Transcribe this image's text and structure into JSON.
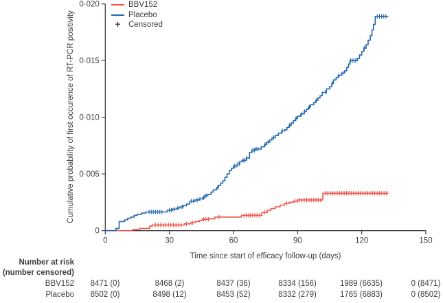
{
  "colors": {
    "bbv152": "#f0544c",
    "placebo": "#2267ae",
    "axis": "#404040",
    "text": "#3c3c3c"
  },
  "legend": {
    "items": [
      {
        "label": "BBV152"
      },
      {
        "label": "Placebo"
      },
      {
        "label": "Censored"
      }
    ],
    "censored_symbol": "+"
  },
  "chart_data": {
    "type": "line",
    "subtype": "kaplan-meier-step",
    "title": "",
    "xlabel": "Time since start of efficacy follow-up (days)",
    "ylabel": "Cumulative probability of first occurence of RT-PCR positivity",
    "xlim": [
      0,
      150
    ],
    "ylim": [
      0,
      0.02
    ],
    "grid": false,
    "legend_position": "top-left-inside",
    "x_ticks": [
      {
        "v": 0,
        "label": "0"
      },
      {
        "v": 30,
        "label": "30"
      },
      {
        "v": 60,
        "label": "60"
      },
      {
        "v": 90,
        "label": "90"
      },
      {
        "v": 120,
        "label": "120"
      },
      {
        "v": 150,
        "label": "150"
      }
    ],
    "y_ticks": [
      {
        "v": 0,
        "label": "0"
      },
      {
        "v": 0.005,
        "label": "0·005"
      },
      {
        "v": 0.01,
        "label": "0·010"
      },
      {
        "v": 0.015,
        "label": "0·015"
      },
      {
        "v": 0.02,
        "label": "0·020"
      }
    ],
    "series": [
      {
        "name": "BBV152",
        "color": "#f0544c",
        "step_points": [
          [
            0,
            0
          ],
          [
            12.8,
            0.0001
          ],
          [
            16,
            0.0002
          ],
          [
            20.8,
            0.0004
          ],
          [
            22,
            0.0005
          ],
          [
            37,
            0.0006
          ],
          [
            40,
            0.0007
          ],
          [
            42,
            0.0008
          ],
          [
            44,
            0.0009
          ],
          [
            45.3,
            0.001
          ],
          [
            48.5,
            0.00105
          ],
          [
            51.3,
            0.0012
          ],
          [
            63.8,
            0.00135
          ],
          [
            73.3,
            0.0016
          ],
          [
            75.8,
            0.0018
          ],
          [
            77.5,
            0.00195
          ],
          [
            79.5,
            0.0021
          ],
          [
            81.8,
            0.00225
          ],
          [
            83.8,
            0.0024
          ],
          [
            86,
            0.0025
          ],
          [
            88,
            0.0026
          ],
          [
            90,
            0.0027
          ],
          [
            101.8,
            0.0033
          ],
          [
            132.5,
            0.0033
          ]
        ],
        "censor_days": [
          23.5,
          24.7,
          25.9,
          27.1,
          28.3,
          29.5,
          30.7,
          31.9,
          33.1,
          34.3,
          35.5,
          38,
          40.8,
          46,
          47,
          48.2,
          53.2,
          65,
          66,
          67,
          68,
          69,
          70,
          71,
          72.2,
          74.5,
          84.8,
          88.7,
          89.8,
          90.9,
          92,
          93.1,
          94.2,
          95.3,
          96.4,
          97.5,
          98.6,
          99.7,
          100.8,
          103,
          104.1,
          105.2,
          106.3,
          107.4,
          108.5,
          109.6,
          110.7,
          111.8,
          112.9,
          114,
          115.1,
          116.2,
          117.3,
          118.4,
          119.5,
          120.6,
          121.7,
          122.8,
          123.9,
          125,
          126.1,
          127.2,
          128.3,
          129.4,
          130.5,
          131.6
        ]
      },
      {
        "name": "Placebo",
        "color": "#2267ae",
        "step_points": [
          [
            0,
            0
          ],
          [
            5,
            0.0002
          ],
          [
            6.5,
            0.0008
          ],
          [
            9,
            0.00095
          ],
          [
            10.5,
            0.0011
          ],
          [
            12,
            0.0012
          ],
          [
            13.5,
            0.00135
          ],
          [
            15,
            0.00145
          ],
          [
            17,
            0.00155
          ],
          [
            19,
            0.00165
          ],
          [
            29,
            0.0018
          ],
          [
            31.5,
            0.0019
          ],
          [
            33.5,
            0.002
          ],
          [
            35,
            0.0021
          ],
          [
            36.5,
            0.0022
          ],
          [
            38,
            0.00235
          ],
          [
            39.5,
            0.0026
          ],
          [
            42,
            0.0027
          ],
          [
            44,
            0.0028
          ],
          [
            45.5,
            0.0029
          ],
          [
            46.5,
            0.0031
          ],
          [
            48,
            0.0032
          ],
          [
            49.5,
            0.0034
          ],
          [
            50.5,
            0.0036
          ],
          [
            52,
            0.0038
          ],
          [
            53,
            0.004
          ],
          [
            54,
            0.0042
          ],
          [
            55,
            0.0044
          ],
          [
            56,
            0.0047
          ],
          [
            57,
            0.005
          ],
          [
            58,
            0.0053
          ],
          [
            59,
            0.0055
          ],
          [
            60,
            0.0057
          ],
          [
            62,
            0.0059
          ],
          [
            63,
            0.0061
          ],
          [
            64,
            0.0062
          ],
          [
            66,
            0.0064
          ],
          [
            67.5,
            0.0069
          ],
          [
            68.5,
            0.0071
          ],
          [
            70,
            0.0072
          ],
          [
            73,
            0.0074
          ],
          [
            74.5,
            0.0076
          ],
          [
            75.5,
            0.0078
          ],
          [
            77,
            0.008
          ],
          [
            78,
            0.0082
          ],
          [
            79.5,
            0.0084
          ],
          [
            81,
            0.0086
          ],
          [
            82.5,
            0.0088
          ],
          [
            84,
            0.0089
          ],
          [
            85,
            0.0091
          ],
          [
            86,
            0.0093
          ],
          [
            87,
            0.0095
          ],
          [
            88,
            0.0097
          ],
          [
            89,
            0.0099
          ],
          [
            90,
            0.0101
          ],
          [
            91.5,
            0.0103
          ],
          [
            93,
            0.0105
          ],
          [
            94,
            0.0107
          ],
          [
            95,
            0.0109
          ],
          [
            96,
            0.0111
          ],
          [
            97.5,
            0.0113
          ],
          [
            98.5,
            0.0115
          ],
          [
            99.5,
            0.0117
          ],
          [
            100.5,
            0.0119
          ],
          [
            101.5,
            0.0122
          ],
          [
            103.5,
            0.0125
          ],
          [
            105,
            0.0127
          ],
          [
            106,
            0.013
          ],
          [
            106.8,
            0.0133
          ],
          [
            108,
            0.0135
          ],
          [
            109,
            0.0137
          ],
          [
            110.5,
            0.0139
          ],
          [
            112,
            0.0141
          ],
          [
            113,
            0.0144
          ],
          [
            113.8,
            0.0147
          ],
          [
            114.5,
            0.015
          ],
          [
            118,
            0.0152
          ],
          [
            119,
            0.0155
          ],
          [
            120,
            0.0158
          ],
          [
            121,
            0.0161
          ],
          [
            122,
            0.0164
          ],
          [
            123,
            0.0168
          ],
          [
            124,
            0.0172
          ],
          [
            124.8,
            0.0177
          ],
          [
            125.5,
            0.0182
          ],
          [
            126.3,
            0.0189
          ],
          [
            132.5,
            0.0189
          ]
        ],
        "censor_days": [
          20.5,
          21.5,
          22.5,
          23.5,
          24.5,
          25.5,
          26.5,
          30,
          31,
          32.3,
          34,
          36,
          40.3,
          41.3,
          43,
          44.3,
          46,
          47.2,
          52.6,
          60.4,
          61.2,
          62,
          62.8,
          64.5,
          65.3,
          66.2,
          69,
          69.8,
          70.6,
          71.5,
          74.8,
          76.2,
          78.8,
          82.8,
          86.3,
          89.3,
          91.8,
          93.2,
          95.5,
          98.8,
          103.2,
          106.2,
          109.3,
          111.2,
          114.8,
          115.6,
          116.4,
          117.2,
          121.2,
          127.3,
          128.3,
          129.3,
          130.3,
          131.3
        ]
      }
    ]
  },
  "risk_table": {
    "header_line1": "Number at risk",
    "header_line2": "(number censored)",
    "rows": [
      {
        "label": "BBV152",
        "values": [
          "8471 (0)",
          "8468 (2)",
          "8437 (36)",
          "8334 (156)",
          "1989 (6635)",
          "0 (8471)"
        ]
      },
      {
        "label": "Placebo",
        "values": [
          "8502 (0)",
          "8498 (12)",
          "8453 (52)",
          "8332 (279)",
          "1765 (6883)",
          "0 (8502)"
        ]
      }
    ]
  }
}
